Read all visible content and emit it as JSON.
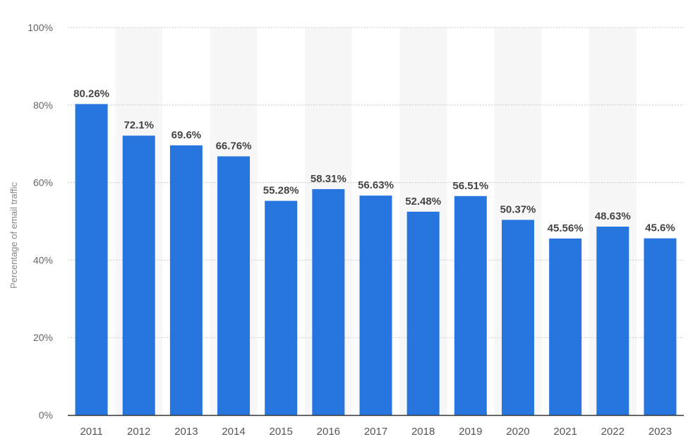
{
  "chart_data": {
    "type": "bar",
    "ylabel": "Percentage of email traffic",
    "xlabel": "",
    "categories": [
      "2011",
      "2012",
      "2013",
      "2014",
      "2015",
      "2016",
      "2017",
      "2018",
      "2019",
      "2020",
      "2021",
      "2022",
      "2023"
    ],
    "values": [
      80.26,
      72.1,
      69.6,
      66.76,
      55.28,
      58.31,
      56.63,
      52.48,
      56.51,
      50.37,
      45.56,
      48.63,
      45.6
    ],
    "data_labels": [
      "80.26%",
      "72.1%",
      "69.6%",
      "66.76%",
      "55.28%",
      "58.31%",
      "56.63%",
      "52.48%",
      "56.51%",
      "50.37%",
      "45.56%",
      "48.63%",
      "45.6%"
    ],
    "y_ticks": [
      0,
      20,
      40,
      60,
      80,
      100
    ],
    "y_tick_labels": [
      "0%",
      "20%",
      "40%",
      "60%",
      "80%",
      "100%"
    ],
    "ylim": [
      0,
      100
    ],
    "grid": true,
    "legend": "none",
    "bar_color": "#2776df",
    "alt_band_color": "#f7f7f7",
    "grid_color": "#c8c8c8",
    "axis_color": "#333333"
  }
}
